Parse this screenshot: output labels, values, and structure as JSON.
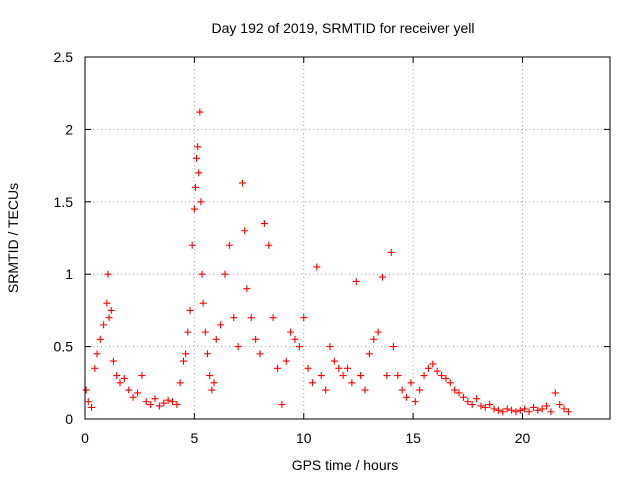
{
  "chart_data": {
    "type": "scatter",
    "title": "Day 192 of 2019, SRMTID for receiver yell",
    "xlabel": "GPS time / hours",
    "ylabel": "SRMTID / TECUs",
    "xlim": [
      0,
      24
    ],
    "ylim": [
      0,
      2.5
    ],
    "x_ticks": [
      0,
      5,
      10,
      15,
      20
    ],
    "x_tick_labels": [
      "0",
      "5",
      "10",
      "15",
      "20"
    ],
    "y_ticks": [
      0,
      0.5,
      1,
      1.5,
      2,
      2.5
    ],
    "y_tick_labels": [
      "0",
      "0.5",
      "1",
      "1.5",
      "2",
      "2.5"
    ],
    "grid": true,
    "marker": "+",
    "marker_color": "#ff0000",
    "series": [
      {
        "name": "SRMTID",
        "x": [
          0.05,
          0.15,
          0.3,
          0.45,
          0.55,
          0.7,
          0.85,
          1.0,
          1.05,
          1.1,
          1.2,
          1.3,
          1.45,
          1.6,
          1.8,
          2.0,
          2.2,
          2.4,
          2.6,
          2.8,
          3.0,
          3.2,
          3.4,
          3.6,
          3.8,
          4.0,
          4.2,
          4.35,
          4.5,
          4.6,
          4.7,
          4.8,
          4.9,
          5.0,
          5.05,
          5.1,
          5.15,
          5.2,
          5.25,
          5.3,
          5.35,
          5.4,
          5.5,
          5.6,
          5.7,
          5.8,
          5.9,
          6.0,
          6.2,
          6.4,
          6.6,
          6.8,
          7.0,
          7.2,
          7.3,
          7.4,
          7.6,
          7.8,
          8.0,
          8.2,
          8.4,
          8.6,
          8.8,
          9.0,
          9.2,
          9.4,
          9.6,
          9.8,
          10.0,
          10.2,
          10.4,
          10.6,
          10.8,
          11.0,
          11.2,
          11.4,
          11.6,
          11.8,
          12.0,
          12.2,
          12.4,
          12.6,
          12.8,
          13.0,
          13.2,
          13.4,
          13.6,
          13.8,
          14.0,
          14.1,
          14.3,
          14.5,
          14.7,
          14.9,
          15.1,
          15.3,
          15.5,
          15.7,
          15.9,
          16.1,
          16.3,
          16.5,
          16.7,
          16.9,
          17.1,
          17.3,
          17.5,
          17.7,
          17.9,
          18.1,
          18.3,
          18.5,
          18.7,
          18.9,
          19.1,
          19.3,
          19.5,
          19.7,
          19.9,
          20.1,
          20.3,
          20.5,
          20.7,
          20.9,
          21.1,
          21.3,
          21.5,
          21.7,
          21.9,
          22.1
        ],
        "y": [
          0.2,
          0.12,
          0.08,
          0.35,
          0.45,
          0.55,
          0.65,
          0.8,
          1.0,
          0.7,
          0.75,
          0.4,
          0.3,
          0.25,
          0.28,
          0.2,
          0.15,
          0.18,
          0.3,
          0.12,
          0.1,
          0.14,
          0.09,
          0.11,
          0.13,
          0.12,
          0.1,
          0.25,
          0.4,
          0.45,
          0.6,
          0.75,
          1.2,
          1.45,
          1.6,
          1.8,
          1.88,
          1.7,
          2.12,
          1.5,
          1.0,
          0.8,
          0.6,
          0.45,
          0.3,
          0.2,
          0.25,
          0.55,
          0.65,
          1.0,
          1.2,
          0.7,
          0.5,
          1.63,
          1.3,
          0.9,
          0.7,
          0.55,
          0.45,
          1.35,
          1.2,
          0.7,
          0.35,
          0.1,
          0.4,
          0.6,
          0.55,
          0.5,
          0.7,
          0.35,
          0.25,
          1.05,
          0.3,
          0.2,
          0.5,
          0.4,
          0.35,
          0.3,
          0.35,
          0.25,
          0.95,
          0.3,
          0.2,
          0.45,
          0.55,
          0.6,
          0.98,
          0.3,
          1.15,
          0.5,
          0.3,
          0.2,
          0.15,
          0.25,
          0.12,
          0.2,
          0.3,
          0.35,
          0.38,
          0.33,
          0.3,
          0.28,
          0.25,
          0.2,
          0.18,
          0.15,
          0.12,
          0.1,
          0.14,
          0.09,
          0.08,
          0.1,
          0.07,
          0.06,
          0.05,
          0.07,
          0.06,
          0.05,
          0.06,
          0.07,
          0.05,
          0.08,
          0.06,
          0.07,
          0.09,
          0.05,
          0.18,
          0.1,
          0.07,
          0.05
        ]
      }
    ]
  }
}
